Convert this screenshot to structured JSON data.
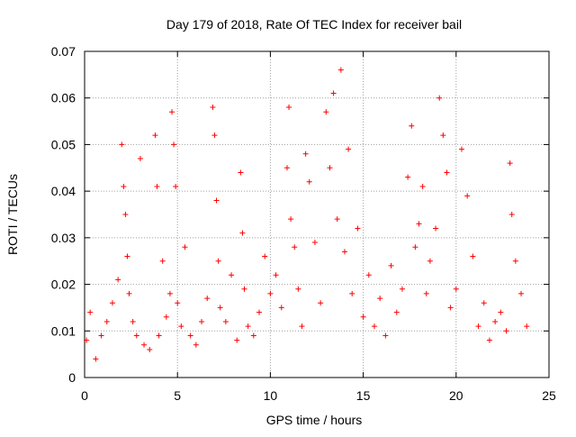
{
  "chart_data": {
    "type": "scatter",
    "title": "Day 179 of 2018, Rate Of TEC Index for receiver bail",
    "xlabel": "GPS time / hours",
    "ylabel": "ROTI / TECUs",
    "xlim": [
      0,
      25
    ],
    "ylim": [
      0,
      0.07
    ],
    "xticks": [
      0,
      5,
      10,
      15,
      20,
      25
    ],
    "xtick_labels": [
      "0",
      "5",
      "10",
      "15",
      "20",
      "25"
    ],
    "yticks": [
      0,
      0.01,
      0.02,
      0.03,
      0.04,
      0.05,
      0.06,
      0.07
    ],
    "ytick_labels": [
      "0",
      "0.01",
      "0.02",
      "0.03",
      "0.04",
      "0.05",
      "0.06",
      "0.07"
    ],
    "grid": true,
    "marker": "+",
    "series_color": "#ff0000",
    "series": [
      {
        "name": "ROTI",
        "x": [
          0.1,
          0.3,
          0.6,
          0.9,
          1.2,
          1.5,
          1.8,
          2.0,
          2.1,
          2.2,
          2.3,
          2.4,
          2.6,
          2.8,
          3.0,
          3.2,
          3.5,
          3.8,
          3.9,
          4.0,
          4.2,
          4.4,
          4.6,
          4.7,
          4.8,
          4.9,
          5.0,
          5.2,
          5.4,
          5.7,
          6.0,
          6.3,
          6.6,
          6.9,
          7.0,
          7.1,
          7.2,
          7.3,
          7.6,
          7.9,
          8.2,
          8.4,
          8.5,
          8.6,
          8.8,
          9.1,
          9.4,
          9.7,
          10.0,
          10.3,
          10.6,
          10.9,
          11.0,
          11.1,
          11.3,
          11.5,
          11.7,
          11.9,
          12.1,
          12.4,
          12.7,
          13.0,
          13.2,
          13.4,
          13.6,
          13.8,
          14.0,
          14.2,
          14.4,
          14.7,
          15.0,
          15.3,
          15.6,
          15.9,
          16.2,
          16.5,
          16.8,
          17.1,
          17.4,
          17.6,
          17.8,
          18.0,
          18.2,
          18.4,
          18.6,
          18.9,
          19.1,
          19.3,
          19.5,
          19.7,
          20.0,
          20.3,
          20.6,
          20.9,
          21.2,
          21.5,
          21.8,
          22.1,
          22.4,
          22.7,
          22.9,
          23.0,
          23.2,
          23.5,
          23.8
        ],
        "y": [
          0.008,
          0.014,
          0.004,
          0.009,
          0.012,
          0.016,
          0.021,
          0.05,
          0.041,
          0.035,
          0.026,
          0.018,
          0.012,
          0.009,
          0.047,
          0.007,
          0.006,
          0.052,
          0.041,
          0.009,
          0.025,
          0.013,
          0.018,
          0.057,
          0.05,
          0.041,
          0.016,
          0.011,
          0.028,
          0.009,
          0.007,
          0.012,
          0.017,
          0.058,
          0.052,
          0.038,
          0.025,
          0.015,
          0.012,
          0.022,
          0.008,
          0.044,
          0.031,
          0.019,
          0.011,
          0.009,
          0.014,
          0.026,
          0.018,
          0.022,
          0.015,
          0.045,
          0.058,
          0.034,
          0.028,
          0.019,
          0.011,
          0.048,
          0.042,
          0.029,
          0.016,
          0.057,
          0.045,
          0.061,
          0.034,
          0.066,
          0.027,
          0.049,
          0.018,
          0.032,
          0.013,
          0.022,
          0.011,
          0.017,
          0.009,
          0.024,
          0.014,
          0.019,
          0.043,
          0.054,
          0.028,
          0.033,
          0.041,
          0.018,
          0.025,
          0.032,
          0.06,
          0.052,
          0.044,
          0.015,
          0.019,
          0.049,
          0.039,
          0.026,
          0.011,
          0.016,
          0.008,
          0.012,
          0.014,
          0.01,
          0.046,
          0.035,
          0.025,
          0.018,
          0.011
        ]
      }
    ]
  }
}
